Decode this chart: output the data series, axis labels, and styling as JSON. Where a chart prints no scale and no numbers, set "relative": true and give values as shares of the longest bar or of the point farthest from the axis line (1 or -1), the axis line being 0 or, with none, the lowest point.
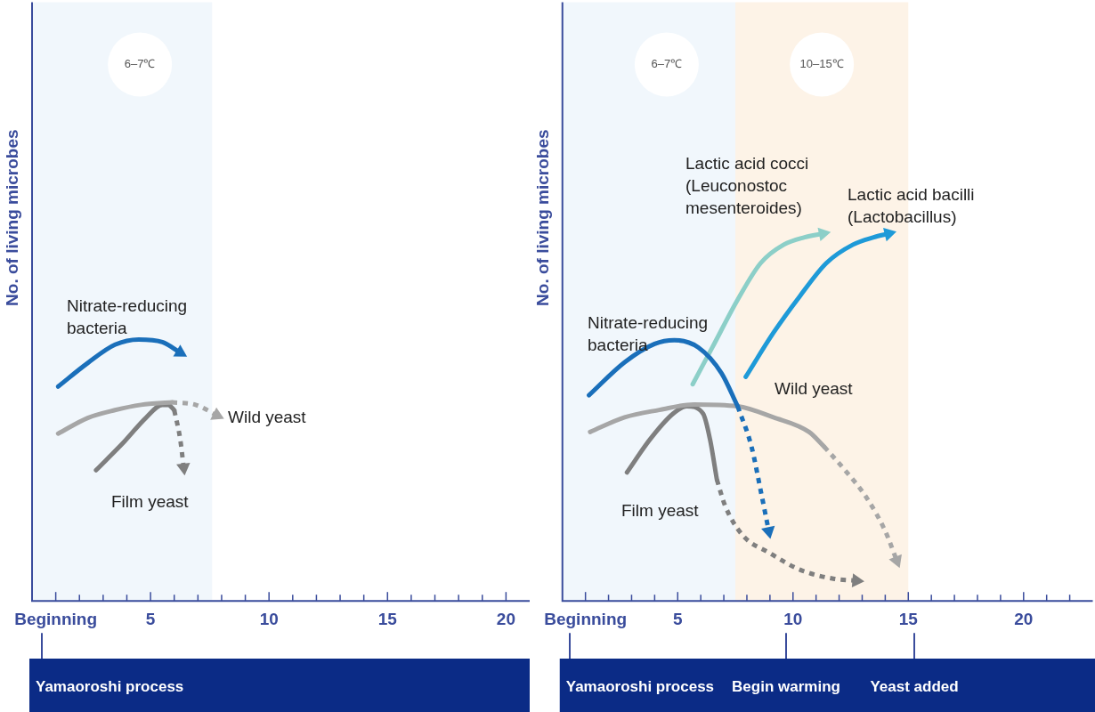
{
  "chart_data": [
    {
      "type": "line",
      "ylabel": "No. of living microbes",
      "relative": true,
      "legend": false,
      "grid": false,
      "tick_labels": "x",
      "xlim": [
        0,
        21
      ],
      "xticks": [
        {
          "value": 1,
          "label": "Beginning"
        },
        {
          "value": 2,
          "label": null
        },
        {
          "value": 3,
          "label": null
        },
        {
          "value": 4,
          "label": null
        },
        5,
        {
          "value": 6,
          "label": null
        },
        {
          "value": 7,
          "label": null
        },
        {
          "value": 8,
          "label": null
        },
        {
          "value": 9,
          "label": null
        },
        10,
        {
          "value": 11,
          "label": null
        },
        {
          "value": 12,
          "label": null
        },
        {
          "value": 13,
          "label": null
        },
        {
          "value": 14,
          "label": null
        },
        15,
        {
          "value": 16,
          "label": null
        },
        {
          "value": 17,
          "label": null
        },
        {
          "value": 18,
          "label": null
        },
        {
          "value": 19,
          "label": null
        },
        20
      ],
      "bands": [
        {
          "axis": "x",
          "from": 0,
          "to": 7.6,
          "label": "6–7℃",
          "color": "#f1f7fc"
        }
      ],
      "series": [
        {
          "name": "Nitrate-reducing bacteria",
          "color": "#1a6fba",
          "x": [
            1.1,
            2.35,
            3.5,
            4.5,
            5.5,
            6.25
          ],
          "values": [
            0.82,
            0.91,
            0.98,
            1.0,
            0.99,
            0.95
          ]
        },
        {
          "color": "#a6a6a6",
          "x": [
            1.1,
            2.35,
            3.5,
            4.6,
            5.9
          ],
          "values": [
            0.64,
            0.7,
            0.73,
            0.75,
            0.76
          ]
        },
        {
          "name": "Wild yeast",
          "color": "#a6a6a6",
          "line_style": "dotted",
          "x": [
            5.9,
            6.9,
            7.8
          ],
          "values": [
            0.76,
            0.75,
            0.71
          ]
        },
        {
          "name": "Film yeast",
          "color": "#7f7f7f",
          "x": [
            2.7,
            3.9,
            4.8,
            5.5,
            5.75,
            6.0
          ],
          "values": [
            0.5,
            0.61,
            0.7,
            0.75,
            0.75,
            0.73
          ]
        },
        {
          "color": "#7f7f7f",
          "line_style": "dotted",
          "x": [
            6.0,
            6.25,
            6.4
          ],
          "values": [
            0.73,
            0.62,
            0.51
          ]
        }
      ],
      "annotations": [
        "Yamaoroshi process"
      ]
    },
    {
      "type": "line",
      "ylabel": "No. of living microbes",
      "relative": true,
      "legend": false,
      "grid": false,
      "tick_labels": "x",
      "xlim": [
        0,
        23
      ],
      "xticks": [
        {
          "value": 1,
          "label": "Beginning"
        },
        {
          "value": 2,
          "label": null
        },
        {
          "value": 3,
          "label": null
        },
        {
          "value": 4,
          "label": null
        },
        5,
        {
          "value": 6,
          "label": null
        },
        {
          "value": 7,
          "label": null
        },
        {
          "value": 8,
          "label": null
        },
        {
          "value": 9,
          "label": null
        },
        10,
        {
          "value": 11,
          "label": null
        },
        {
          "value": 12,
          "label": null
        },
        {
          "value": 13,
          "label": null
        },
        {
          "value": 14,
          "label": null
        },
        15,
        {
          "value": 16,
          "label": null
        },
        {
          "value": 17,
          "label": null
        },
        {
          "value": 18,
          "label": null
        },
        {
          "value": 19,
          "label": null
        },
        20,
        {
          "value": 21,
          "label": null
        },
        {
          "value": 22,
          "label": null
        }
      ],
      "bands": [
        {
          "axis": "x",
          "from": 0,
          "to": 7.5,
          "label": "6–7℃",
          "color": "#f1f7fc"
        },
        {
          "axis": "x",
          "from": 7.5,
          "to": 15,
          "label": "10–15℃",
          "color": "#fdf3e7"
        }
      ],
      "series": [
        {
          "name": "Nitrate-reducing bacteria",
          "color": "#1a6fba",
          "x": [
            1.15,
            2.7,
            4.0,
            4.85,
            5.9,
            6.9,
            7.6
          ],
          "values": [
            0.56,
            0.65,
            0.7,
            0.71,
            0.69,
            0.62,
            0.53
          ]
        },
        {
          "color": "#1a6fba",
          "line_style": "dotted",
          "x": [
            7.6,
            8.2,
            8.6,
            8.95
          ],
          "values": [
            0.53,
            0.42,
            0.3,
            0.19
          ]
        },
        {
          "name": "Lactic acid cocci (Leuconostoc mesenteroides)",
          "color": "#8ccfc8",
          "x": [
            5.65,
            6.5,
            7.6,
            8.6,
            9.6,
            10.5,
            11.3
          ],
          "values": [
            0.59,
            0.69,
            0.82,
            0.92,
            0.97,
            0.99,
            1.0
          ]
        },
        {
          "name": "Lactic acid bacilli (Lactobacillus)",
          "color": "#1e9ad8",
          "x": [
            7.95,
            9.15,
            10.3,
            11.45,
            12.6,
            13.5,
            14.15
          ],
          "values": [
            0.61,
            0.73,
            0.83,
            0.92,
            0.97,
            0.99,
            1.0
          ]
        },
        {
          "name": "Wild yeast",
          "color": "#a6a6a6",
          "x": [
            1.2,
            2.7,
            4.2,
            5.7,
            7.6,
            9.15,
            10.7,
            11.35
          ],
          "values": [
            0.46,
            0.5,
            0.52,
            0.535,
            0.53,
            0.5,
            0.46,
            0.42
          ]
        },
        {
          "color": "#a6a6a6",
          "line_style": "dotted",
          "x": [
            11.35,
            12.2,
            13.2,
            14.0,
            14.5
          ],
          "values": [
            0.42,
            0.36,
            0.28,
            0.19,
            0.11
          ]
        },
        {
          "name": "Film yeast",
          "color": "#7f7f7f",
          "x": [
            2.8,
            3.8,
            4.8,
            5.4,
            6.1,
            6.4,
            6.7
          ],
          "values": [
            0.35,
            0.44,
            0.51,
            0.53,
            0.51,
            0.44,
            0.33
          ]
        },
        {
          "color": "#7f7f7f",
          "line_style": "dotted",
          "x": [
            6.7,
            7.05,
            7.8,
            9.0,
            10.3,
            11.8,
            12.75
          ],
          "values": [
            0.33,
            0.26,
            0.18,
            0.13,
            0.085,
            0.06,
            0.055
          ]
        }
      ],
      "annotations": [
        "Yamaoroshi process",
        "Begin warming",
        "Yeast added"
      ]
    }
  ]
}
